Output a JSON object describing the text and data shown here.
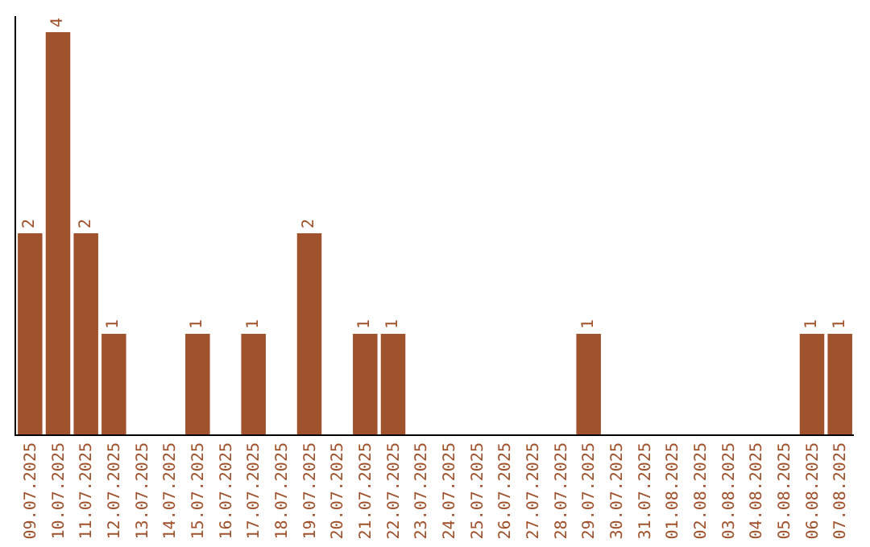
{
  "chart_data": {
    "type": "bar",
    "categories": [
      "09.07.2025",
      "10.07.2025",
      "11.07.2025",
      "12.07.2025",
      "13.07.2025",
      "14.07.2025",
      "15.07.2025",
      "16.07.2025",
      "17.07.2025",
      "18.07.2025",
      "19.07.2025",
      "20.07.2025",
      "21.07.2025",
      "22.07.2025",
      "23.07.2025",
      "24.07.2025",
      "25.07.2025",
      "26.07.2025",
      "27.07.2025",
      "28.07.2025",
      "29.07.2025",
      "30.07.2025",
      "31.07.2025",
      "01.08.2025",
      "02.08.2025",
      "03.08.2025",
      "04.08.2025",
      "05.08.2025",
      "06.08.2025",
      "07.08.2025"
    ],
    "values": [
      2,
      4,
      2,
      1,
      0,
      0,
      1,
      0,
      1,
      0,
      2,
      0,
      1,
      1,
      0,
      0,
      0,
      0,
      0,
      0,
      1,
      0,
      0,
      0,
      0,
      0,
      0,
      0,
      1,
      1
    ],
    "value_labels": [
      "2",
      "4",
      "2",
      "1",
      null,
      null,
      "1",
      null,
      "1",
      null,
      "2",
      null,
      "1",
      "1",
      null,
      null,
      null,
      null,
      null,
      null,
      "1",
      null,
      null,
      null,
      null,
      null,
      null,
      null,
      "1",
      "1"
    ],
    "color": "#a0522d",
    "ylim": [
      0,
      4.16
    ],
    "grid": false,
    "legend": false
  }
}
